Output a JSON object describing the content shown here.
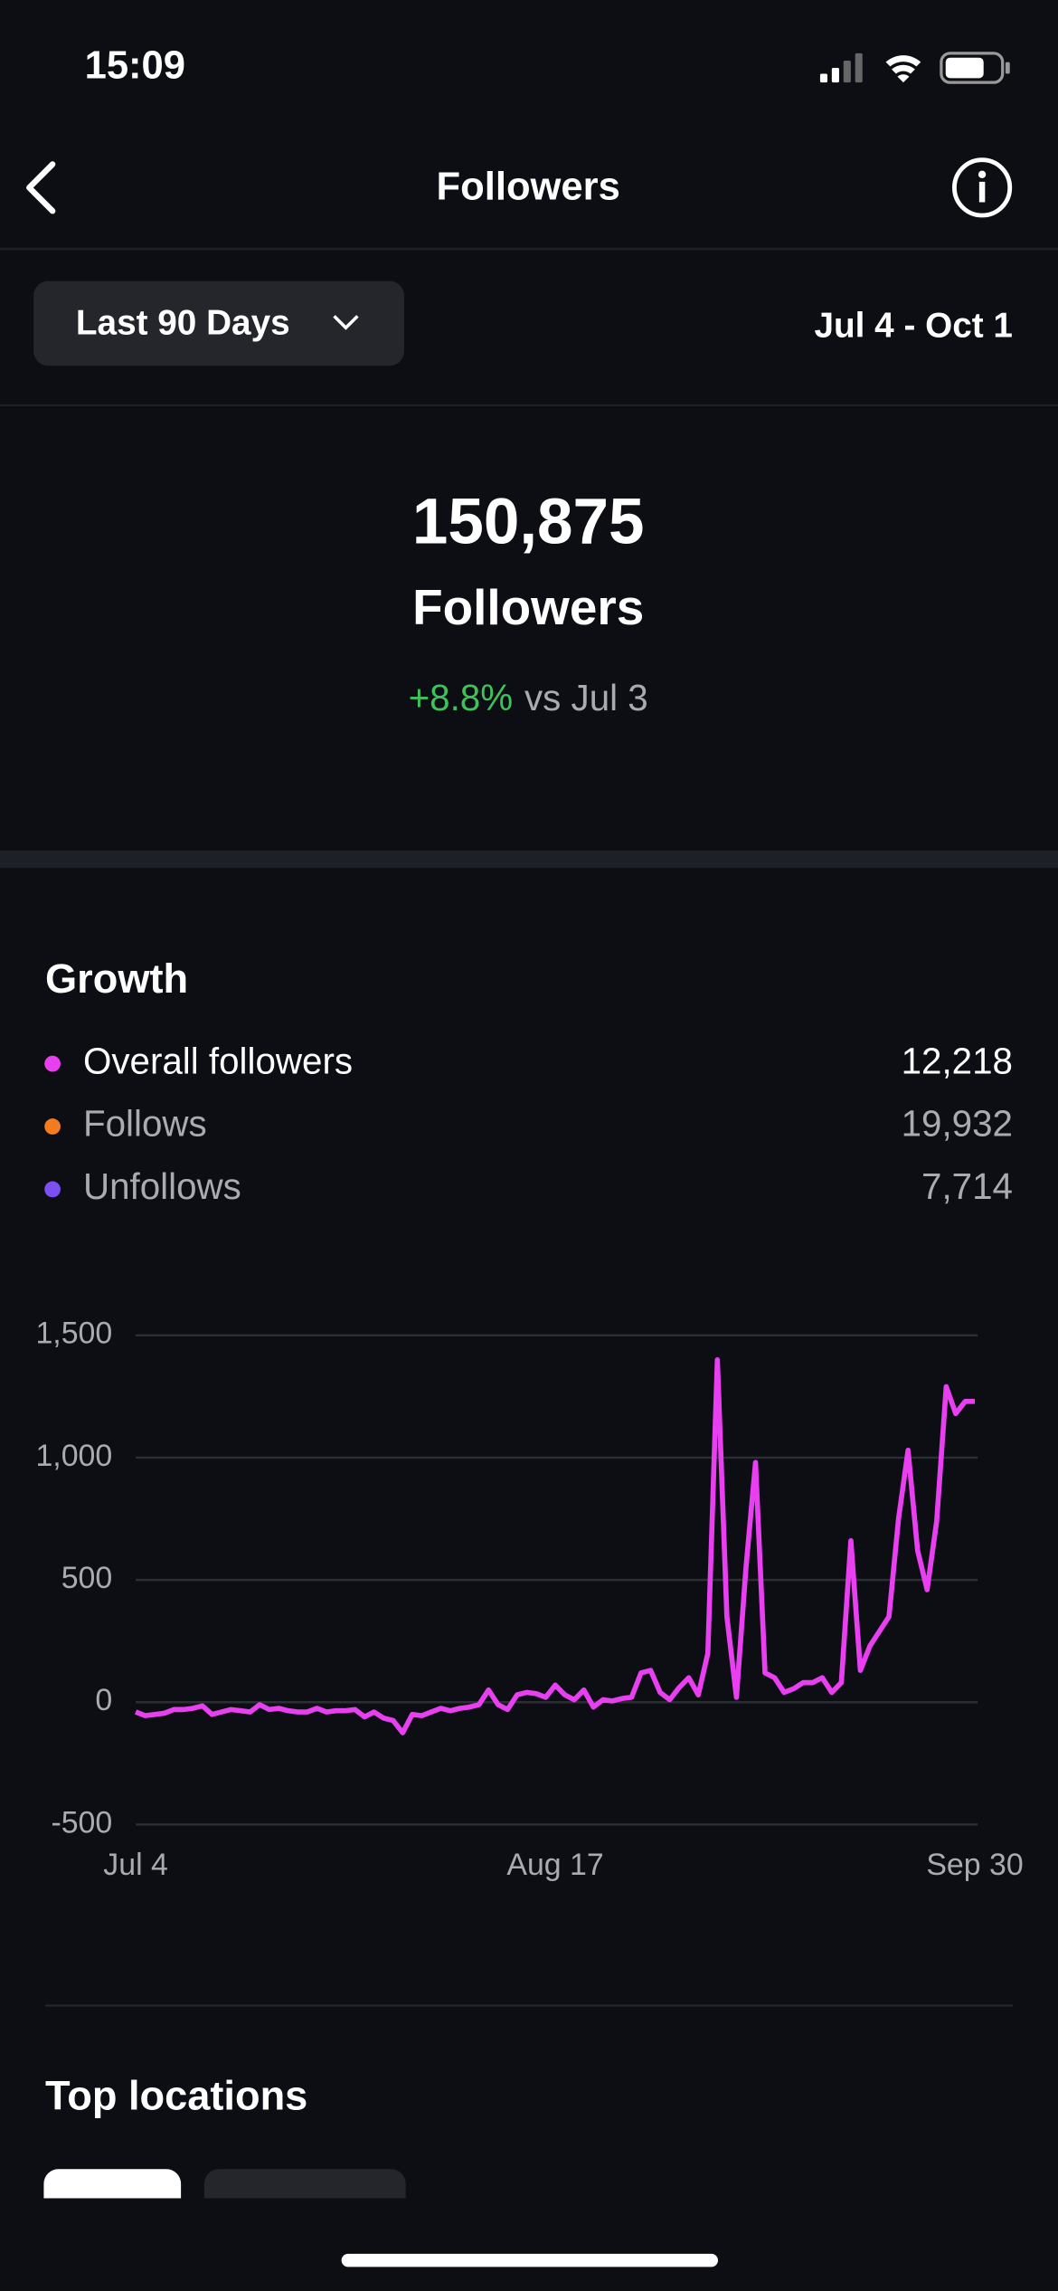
{
  "status_bar": {
    "time": "15:09"
  },
  "header": {
    "title": "Followers"
  },
  "filter": {
    "label": "Last 90 Days",
    "date_range": "Jul 4 - Oct 1"
  },
  "summary": {
    "value": "150,875",
    "label": "Followers",
    "change": "+8.8%",
    "compare": "vs Jul 3"
  },
  "growth": {
    "title": "Growth",
    "legend": [
      {
        "name": "Overall followers",
        "value": "12,218",
        "color": "#e83ff0"
      },
      {
        "name": "Follows",
        "value": "19,932",
        "color": "#f57b1f"
      },
      {
        "name": "Unfollows",
        "value": "7,714",
        "color": "#7b4ff2"
      }
    ]
  },
  "chart_data": {
    "type": "line",
    "color": "#e83ff0",
    "values": [
      -40,
      -55,
      -50,
      -45,
      -30,
      -30,
      -25,
      -15,
      -50,
      -40,
      -30,
      -35,
      -40,
      -10,
      -30,
      -25,
      -35,
      -40,
      -40,
      -25,
      -40,
      -35,
      -35,
      -30,
      -60,
      -40,
      -65,
      -75,
      -125,
      -50,
      -55,
      -40,
      -25,
      -35,
      -25,
      -20,
      -10,
      50,
      -10,
      -30,
      30,
      40,
      35,
      20,
      70,
      30,
      10,
      50,
      -20,
      10,
      5,
      15,
      20,
      120,
      130,
      40,
      10,
      60,
      100,
      30,
      200,
      1400,
      350,
      20,
      550,
      980,
      120,
      100,
      40,
      55,
      80,
      80,
      100,
      40,
      80,
      660,
      130,
      230,
      290,
      350,
      750,
      1030,
      620,
      460,
      740,
      1290,
      1180,
      1230,
      1230
    ],
    "xlim": [
      0,
      88
    ],
    "xticks": [
      {
        "value": 0,
        "label": "Jul 4"
      },
      {
        "value": 44,
        "label": "Aug 17"
      },
      {
        "value": 88,
        "label": "Sep 30"
      }
    ],
    "ylim": [
      -500,
      1500
    ],
    "yticks": [
      -500,
      0,
      500,
      {
        "value": 1000,
        "label": "1,000"
      },
      {
        "value": 1500,
        "label": "1,500"
      }
    ],
    "grid": true
  },
  "top_locations": {
    "title": "Top locations"
  }
}
